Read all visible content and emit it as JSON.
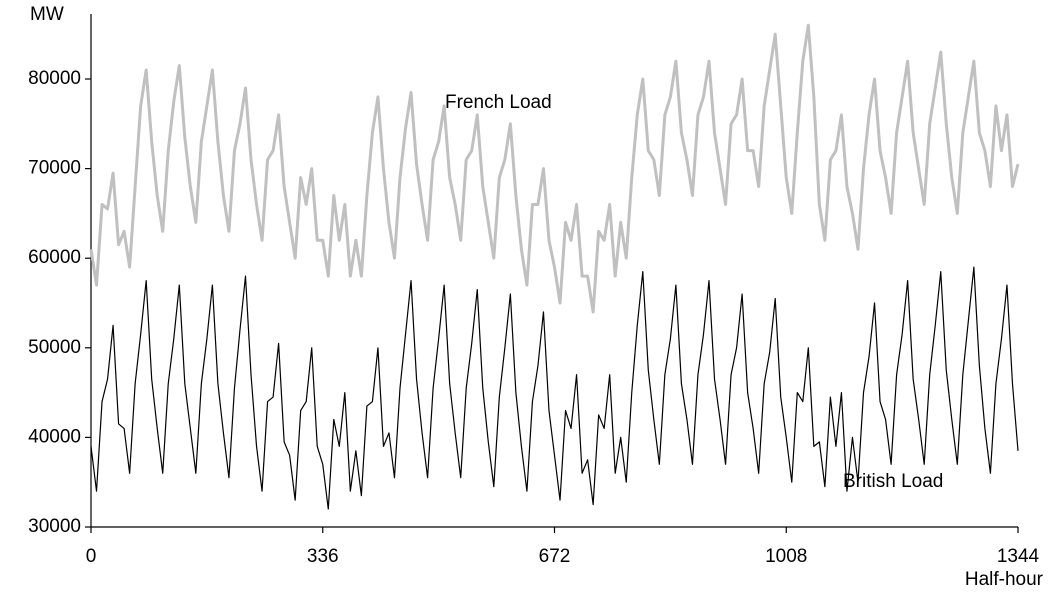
{
  "chart_data": {
    "type": "line",
    "y_label": "MW",
    "x_label": "Half-hour",
    "annotations": [
      "French Load",
      "British Load"
    ],
    "xlim": [
      0,
      1344
    ],
    "xticks": [
      0,
      336,
      672,
      1008,
      1344
    ],
    "ylim": [
      30000,
      80000
    ],
    "yticks": [
      30000,
      40000,
      50000,
      60000,
      70000,
      80000
    ],
    "grid": false,
    "x": [
      0,
      8,
      16,
      24,
      32,
      40,
      48,
      56,
      64,
      72,
      80,
      88,
      96,
      104,
      112,
      120,
      128,
      136,
      144,
      152,
      160,
      168,
      176,
      184,
      192,
      200,
      208,
      216,
      224,
      232,
      240,
      248,
      256,
      264,
      272,
      280,
      288,
      296,
      304,
      312,
      320,
      328,
      336,
      344,
      352,
      360,
      368,
      376,
      384,
      392,
      400,
      408,
      416,
      424,
      432,
      440,
      448,
      456,
      464,
      472,
      480,
      488,
      496,
      504,
      512,
      520,
      528,
      536,
      544,
      552,
      560,
      568,
      576,
      584,
      592,
      600,
      608,
      616,
      624,
      632,
      640,
      648,
      656,
      664,
      672,
      680,
      688,
      696,
      704,
      712,
      720,
      728,
      736,
      744,
      752,
      760,
      768,
      776,
      784,
      792,
      800,
      808,
      816,
      824,
      832,
      840,
      848,
      856,
      864,
      872,
      880,
      888,
      896,
      904,
      912,
      920,
      928,
      936,
      944,
      952,
      960,
      968,
      976,
      984,
      992,
      1000,
      1008,
      1016,
      1024,
      1032,
      1040,
      1048,
      1056,
      1064,
      1072,
      1080,
      1088,
      1096,
      1104,
      1112,
      1120,
      1128,
      1136,
      1144,
      1152,
      1160,
      1168,
      1176,
      1184,
      1192,
      1200,
      1208,
      1216,
      1224,
      1232,
      1240,
      1248,
      1256,
      1264,
      1272,
      1280,
      1288,
      1296,
      1304,
      1312,
      1320,
      1328,
      1336,
      1344
    ],
    "series": [
      {
        "name": "French Load",
        "color": "#c0c0c0",
        "width": 3,
        "values": [
          61000,
          57000,
          66000,
          65500,
          69500,
          61500,
          63000,
          59000,
          68000,
          77000,
          81000,
          73000,
          67000,
          63000,
          72000,
          77500,
          81500,
          73500,
          68000,
          64000,
          73000,
          77000,
          81000,
          73000,
          67000,
          63000,
          72000,
          75000,
          79000,
          71000,
          66000,
          62000,
          71000,
          72000,
          76000,
          68000,
          64000,
          60000,
          69000,
          66000,
          70000,
          62000,
          62000,
          58000,
          67000,
          62000,
          66000,
          58000,
          62000,
          58000,
          67000,
          74000,
          78000,
          70000,
          64000,
          60000,
          69000,
          74500,
          78500,
          70500,
          66000,
          62000,
          71000,
          73000,
          77000,
          69000,
          66000,
          62000,
          71000,
          72000,
          76000,
          68000,
          64000,
          60000,
          69000,
          71000,
          75000,
          67000,
          61000,
          57000,
          66000,
          66000,
          70000,
          62000,
          59000,
          55000,
          64000,
          62000,
          66000,
          58000,
          58000,
          54000,
          63000,
          62000,
          66000,
          58000,
          64000,
          60000,
          69000,
          76000,
          80000,
          72000,
          71000,
          67000,
          76000,
          78000,
          82000,
          74000,
          71000,
          67000,
          76000,
          78000,
          82000,
          74000,
          70000,
          66000,
          75000,
          76000,
          80000,
          72000,
          72000,
          68000,
          77000,
          81000,
          85000,
          77000,
          69000,
          65000,
          74000,
          82000,
          86000,
          78000,
          66000,
          62000,
          71000,
          72000,
          76000,
          68000,
          65000,
          61000,
          70000,
          76000,
          80000,
          72000,
          69000,
          65000,
          74000,
          78000,
          82000,
          74000,
          70000,
          66000,
          75000,
          79000,
          83000,
          75000,
          69000,
          65000,
          74000,
          78000,
          82000,
          74000,
          72000,
          68000,
          77000,
          72000,
          76000,
          68000,
          70500
        ]
      },
      {
        "name": "British Load",
        "color": "#000000",
        "width": 1.2,
        "values": [
          39000,
          34000,
          44000,
          46500,
          52500,
          41500,
          41000,
          36000,
          46000,
          51500,
          57500,
          46500,
          41000,
          36000,
          46000,
          51000,
          57000,
          46000,
          41000,
          36000,
          46000,
          51000,
          57000,
          46000,
          40500,
          35500,
          45500,
          52000,
          58000,
          47000,
          39000,
          34000,
          44000,
          44500,
          50500,
          39500,
          38000,
          33000,
          43000,
          44000,
          50000,
          39000,
          37000,
          32000,
          42000,
          39000,
          45000,
          34000,
          38500,
          33500,
          43500,
          44000,
          50000,
          39000,
          40500,
          35500,
          45500,
          51500,
          57500,
          46500,
          40500,
          35500,
          45500,
          51000,
          57000,
          46000,
          40500,
          35500,
          45500,
          50500,
          56500,
          45500,
          39500,
          34500,
          44500,
          50000,
          56000,
          45000,
          39000,
          34000,
          44000,
          48000,
          54000,
          43000,
          38000,
          33000,
          43000,
          41000,
          47000,
          36000,
          37500,
          32500,
          42500,
          41000,
          47000,
          36000,
          40000,
          35000,
          45000,
          52500,
          58500,
          47500,
          42000,
          37000,
          47000,
          51000,
          57000,
          46000,
          42000,
          37000,
          47000,
          51500,
          57500,
          46500,
          42000,
          37000,
          47000,
          50000,
          56000,
          45000,
          41000,
          36000,
          46000,
          49500,
          55500,
          44500,
          40000,
          35000,
          45000,
          44000,
          50000,
          39000,
          39500,
          34500,
          44500,
          39000,
          45000,
          34000,
          40000,
          35000,
          45000,
          49000,
          55000,
          44000,
          42000,
          37000,
          47000,
          51500,
          57500,
          46500,
          42000,
          37000,
          47000,
          52500,
          58500,
          47500,
          42000,
          37000,
          47000,
          53000,
          59000,
          48000,
          41000,
          36000,
          46000,
          51000,
          57000,
          46000,
          38500
        ]
      }
    ]
  }
}
